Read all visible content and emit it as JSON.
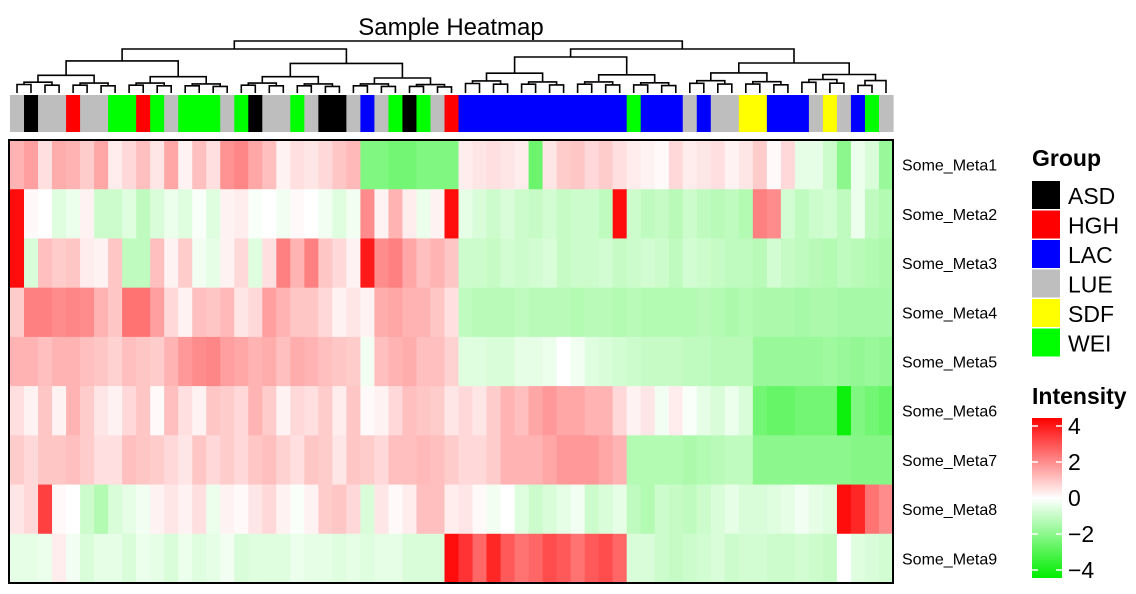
{
  "colors": {
    "low": "#00ee00",
    "mid": "#ffffff",
    "high": "#ff0000",
    "border": "#000000"
  },
  "chart_data": {
    "type": "heatmap",
    "title": "Sample Heatmap",
    "rows": [
      "Some_Meta1",
      "Some_Meta2",
      "Some_Meta3",
      "Some_Meta4",
      "Some_Meta5",
      "Some_Meta6",
      "Some_Meta7",
      "Some_Meta8",
      "Some_Meta9"
    ],
    "n_columns": 63,
    "group_legend": {
      "title": "Group",
      "items": [
        {
          "label": "ASD",
          "color": "#000000"
        },
        {
          "label": "HGH",
          "color": "#ff0000"
        },
        {
          "label": "LAC",
          "color": "#0000ff"
        },
        {
          "label": "LUE",
          "color": "#bebebe"
        },
        {
          "label": "SDF",
          "color": "#ffff00"
        },
        {
          "label": "WEI",
          "color": "#00ff00"
        }
      ]
    },
    "column_groups": [
      "LUE",
      "ASD",
      "LUE",
      "LUE",
      "HGH",
      "LUE",
      "LUE",
      "WEI",
      "WEI",
      "HGH",
      "WEI",
      "LUE",
      "WEI",
      "WEI",
      "WEI",
      "LUE",
      "WEI",
      "ASD",
      "LUE",
      "LUE",
      "WEI",
      "LUE",
      "ASD",
      "ASD",
      "LUE",
      "LAC",
      "LUE",
      "WEI",
      "ASD",
      "WEI",
      "LUE",
      "HGH",
      "LAC",
      "LAC",
      "LAC",
      "LAC",
      "LAC",
      "LAC",
      "LAC",
      "LAC",
      "LAC",
      "LAC",
      "LAC",
      "LAC",
      "WEI",
      "LAC",
      "LAC",
      "LAC",
      "LUE",
      "LAC",
      "LUE",
      "LUE",
      "SDF",
      "SDF",
      "LAC",
      "LAC",
      "LAC",
      "LUE",
      "SDF",
      "LUE",
      "LAC",
      "WEI",
      "LUE"
    ],
    "intensity_legend": {
      "title": "Intensity",
      "ticks": [
        "4",
        "2",
        "0",
        "−2",
        "−4"
      ],
      "range": [
        -4,
        4
      ]
    },
    "values": [
      [
        1.2,
        1.5,
        0.5,
        1.3,
        1.2,
        0.8,
        1.4,
        0.3,
        0.6,
        1.0,
        0.4,
        1.4,
        0.2,
        1.0,
        0.5,
        1.7,
        1.9,
        1.4,
        1.0,
        0.2,
        0.5,
        0.4,
        0.6,
        0.9,
        1.1,
        -2.0,
        -2.0,
        -2.2,
        -2.2,
        -2.0,
        -2.0,
        -2.0,
        0.3,
        0.4,
        0.5,
        0.4,
        0.3,
        -2.3,
        0.4,
        0.8,
        0.9,
        0.6,
        0.8,
        0.5,
        0.3,
        0.2,
        0.1,
        0.6,
        0.3,
        0.4,
        0.5,
        0.2,
        0.4,
        0.8,
        0.1,
        0.6,
        -0.4,
        -0.4,
        -0.8,
        -1.8,
        -0.3,
        -0.6,
        -1.6
      ],
      [
        3.8,
        0.1,
        0.0,
        -0.5,
        -0.3,
        0.2,
        -0.8,
        -0.8,
        -0.5,
        -1.0,
        -0.6,
        -0.3,
        -0.5,
        -0.1,
        -0.5,
        0.2,
        0.3,
        -0.1,
        0.0,
        -0.2,
        0.1,
        0.0,
        -0.2,
        -0.5,
        -0.2,
        1.8,
        0.2,
        1.2,
        0.3,
        -0.3,
        0.2,
        3.8,
        -0.4,
        -0.6,
        -0.8,
        -0.6,
        -0.8,
        -0.9,
        -0.7,
        -0.9,
        -0.8,
        -0.8,
        -1.0,
        3.8,
        -0.8,
        -1.0,
        -0.9,
        -1.1,
        -0.8,
        -1.0,
        -1.1,
        -1.0,
        -1.2,
        2.0,
        1.8,
        -0.7,
        -1.0,
        -0.8,
        -0.7,
        -1.0,
        -0.3,
        -1.0,
        -1.2
      ],
      [
        3.8,
        -0.6,
        1.0,
        0.8,
        0.9,
        0.3,
        0.2,
        0.9,
        -1.0,
        -1.0,
        1.0,
        0.2,
        0.8,
        -0.2,
        -0.4,
        0.2,
        0.6,
        -0.5,
        0.5,
        2.0,
        1.2,
        2.0,
        0.9,
        0.6,
        0.2,
        3.6,
        1.8,
        2.0,
        1.4,
        1.0,
        1.2,
        0.9,
        -0.8,
        -0.8,
        -0.9,
        -0.7,
        -0.8,
        -0.7,
        -0.6,
        -0.9,
        -0.8,
        -0.8,
        -0.7,
        -0.9,
        -0.8,
        -0.7,
        -0.8,
        -1.0,
        -0.7,
        -0.8,
        -0.9,
        -1.0,
        -1.0,
        -1.1,
        -0.7,
        -0.9,
        -1.0,
        -1.1,
        -1.2,
        -1.0,
        -1.1,
        -1.2,
        -1.3
      ],
      [
        0.8,
        2.0,
        2.0,
        1.8,
        1.9,
        1.8,
        1.2,
        0.9,
        2.2,
        2.2,
        1.5,
        0.6,
        0.2,
        1.0,
        0.9,
        1.1,
        0.4,
        0.6,
        1.5,
        1.2,
        0.9,
        0.9,
        0.6,
        0.2,
        0.4,
        0.2,
        1.3,
        1.4,
        1.2,
        1.2,
        0.9,
        0.5,
        -1.0,
        -1.1,
        -1.1,
        -1.1,
        -1.0,
        -1.1,
        -1.1,
        -1.1,
        -1.2,
        -1.1,
        -1.1,
        -1.2,
        -1.1,
        -1.2,
        -1.2,
        -1.2,
        -1.2,
        -1.1,
        -1.2,
        -1.3,
        -1.2,
        -1.3,
        -1.3,
        -1.3,
        -1.4,
        -1.3,
        -1.3,
        -1.4,
        -1.4,
        -1.4,
        -1.4
      ],
      [
        1.2,
        1.2,
        1.0,
        1.2,
        1.2,
        1.0,
        0.9,
        0.7,
        1.0,
        0.9,
        0.8,
        1.2,
        1.6,
        1.8,
        1.9,
        1.5,
        1.4,
        1.2,
        1.3,
        1.0,
        1.3,
        1.2,
        1.0,
        0.9,
        0.8,
        -0.2,
        1.0,
        1.2,
        1.3,
        1.0,
        1.0,
        0.7,
        -0.5,
        -0.5,
        -0.6,
        -0.6,
        -0.4,
        -0.4,
        -0.3,
        0.0,
        -0.2,
        -0.5,
        -0.6,
        -0.7,
        -0.8,
        -0.9,
        -0.9,
        -0.9,
        -1.0,
        -1.0,
        -1.1,
        -1.1,
        -1.1,
        -1.6,
        -1.6,
        -1.6,
        -1.6,
        -1.6,
        -1.5,
        -1.6,
        -1.7,
        -1.6,
        -1.7
      ],
      [
        0.5,
        0.2,
        0.9,
        0.2,
        1.2,
        0.8,
        0.4,
        0.2,
        0.6,
        0.9,
        0.1,
        1.0,
        0.5,
        0.2,
        0.9,
        0.8,
        0.6,
        1.2,
        0.8,
        0.2,
        0.6,
        0.5,
        0.8,
        0.3,
        0.9,
        0.1,
        0.2,
        0.6,
        1.0,
        0.9,
        0.8,
        0.4,
        0.6,
        0.4,
        0.8,
        1.2,
        1.0,
        1.4,
        1.6,
        1.4,
        1.4,
        1.2,
        1.2,
        0.6,
        0.2,
        0.4,
        -0.2,
        0.3,
        -0.1,
        -0.4,
        -0.6,
        -0.3,
        -0.6,
        -2.2,
        -2.4,
        -2.4,
        -2.2,
        -2.2,
        -2.2,
        -3.8,
        -2.0,
        -2.2,
        -2.4
      ],
      [
        0.8,
        0.6,
        0.9,
        0.9,
        1.0,
        0.8,
        0.5,
        0.5,
        1.0,
        0.9,
        0.8,
        0.6,
        0.4,
        0.9,
        0.6,
        0.8,
        0.6,
        0.9,
        1.0,
        0.7,
        0.5,
        0.9,
        0.8,
        0.4,
        0.9,
        0.8,
        0.6,
        1.0,
        1.0,
        1.1,
        1.0,
        0.8,
        0.6,
        0.6,
        0.8,
        1.2,
        1.2,
        1.2,
        1.4,
        1.6,
        1.6,
        1.6,
        1.4,
        1.2,
        -1.2,
        -1.2,
        -1.2,
        -1.2,
        -1.3,
        -1.2,
        -1.1,
        -1.0,
        -1.0,
        -1.8,
        -1.8,
        -1.8,
        -1.8,
        -1.8,
        -1.8,
        -1.8,
        -1.9,
        -1.9,
        -1.9
      ],
      [
        0.4,
        0.6,
        3.0,
        0.1,
        0.0,
        -0.8,
        -1.2,
        -0.6,
        -0.4,
        -0.2,
        0.2,
        0.4,
        0.2,
        0.5,
        -0.3,
        0.2,
        0.1,
        0.4,
        0.6,
        0.2,
        -0.1,
        0.2,
        0.8,
        0.9,
        0.6,
        -0.6,
        0.4,
        0.1,
        0.3,
        1.0,
        1.0,
        0.3,
        0.4,
        0.1,
        -0.2,
        0.0,
        -0.5,
        -0.8,
        -0.6,
        -0.4,
        -0.2,
        -0.8,
        -0.6,
        -0.4,
        -1.0,
        -1.2,
        -0.8,
        -0.9,
        -1.0,
        -0.8,
        -0.6,
        -0.4,
        -0.6,
        -0.6,
        -0.5,
        -0.4,
        -0.2,
        -0.4,
        -0.5,
        3.8,
        3.4,
        2.2,
        1.8
      ],
      [
        -0.4,
        -0.4,
        -0.3,
        0.3,
        -0.2,
        -0.6,
        -0.4,
        -0.4,
        -0.6,
        -0.3,
        -0.4,
        -0.6,
        -0.3,
        -0.5,
        -0.4,
        -0.2,
        -0.6,
        -0.5,
        -0.5,
        -0.5,
        -0.3,
        -0.4,
        -0.4,
        -0.5,
        -0.4,
        -0.5,
        -0.4,
        -0.4,
        -0.6,
        -0.6,
        -0.6,
        3.8,
        3.2,
        2.4,
        3.4,
        2.6,
        2.2,
        2.4,
        2.8,
        2.6,
        2.2,
        2.6,
        2.8,
        2.4,
        -0.6,
        -0.6,
        -0.8,
        -0.9,
        -0.8,
        -0.7,
        -0.6,
        -0.8,
        -0.7,
        -0.7,
        -0.8,
        -0.8,
        -0.7,
        -0.8,
        -0.9,
        0.0,
        -0.5,
        -0.6,
        -0.7
      ]
    ]
  }
}
